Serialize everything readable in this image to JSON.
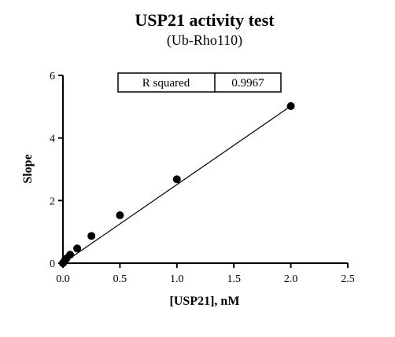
{
  "chart_data": {
    "type": "scatter",
    "title": "USP21 activity test",
    "subtitle": "(Ub-Rho110)",
    "xlabel": "[USP21], nM",
    "ylabel": "Slope",
    "xlim": [
      0,
      2.5
    ],
    "ylim": [
      0,
      6
    ],
    "x_ticks": [
      0.0,
      0.5,
      1.0,
      1.5,
      2.0,
      2.5
    ],
    "x_tick_labels": [
      "0.0",
      "0.5",
      "1.0",
      "1.5",
      "2.0",
      "2.5"
    ],
    "y_ticks": [
      0,
      2,
      4,
      6
    ],
    "y_tick_labels": [
      "0",
      "2",
      "4",
      "6"
    ],
    "grid": false,
    "points": [
      {
        "x": 0.0,
        "y": 0.0
      },
      {
        "x": 0.016,
        "y": 0.08
      },
      {
        "x": 0.031,
        "y": 0.15
      },
      {
        "x": 0.063,
        "y": 0.27
      },
      {
        "x": 0.125,
        "y": 0.47
      },
      {
        "x": 0.25,
        "y": 0.87
      },
      {
        "x": 0.5,
        "y": 1.53
      },
      {
        "x": 1.0,
        "y": 2.68
      },
      {
        "x": 2.0,
        "y": 5.02
      }
    ],
    "fit_line": {
      "x": [
        0.0,
        2.0
      ],
      "y": [
        0.0,
        5.02
      ]
    },
    "annotation": {
      "label": "R squared",
      "value": "0.9967"
    }
  }
}
